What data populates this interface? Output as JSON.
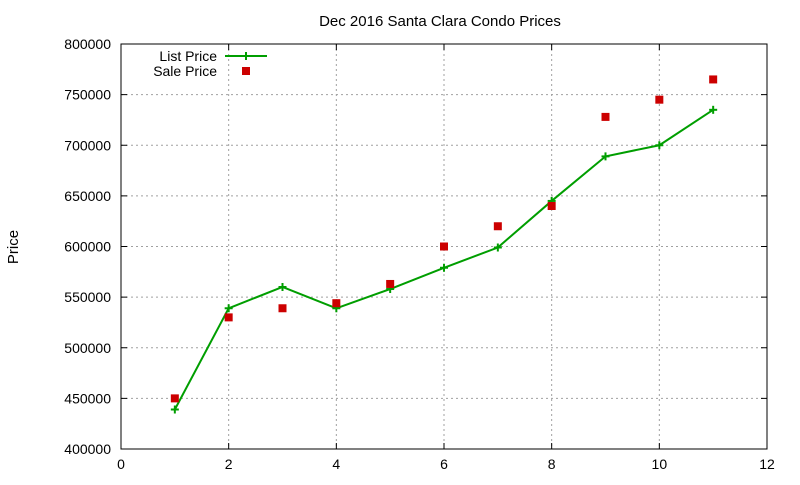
{
  "chart_data": {
    "type": "scatter",
    "title": "Dec 2016 Santa Clara Condo Prices",
    "xlabel": "",
    "ylabel": "Price",
    "xlim": [
      0,
      12
    ],
    "ylim": [
      400000,
      800000
    ],
    "xticks": [
      0,
      2,
      4,
      6,
      8,
      10,
      12
    ],
    "yticks": [
      400000,
      450000,
      500000,
      550000,
      600000,
      650000,
      700000,
      750000,
      800000
    ],
    "grid": true,
    "legend_position": "top-left",
    "series": [
      {
        "name": "List Price",
        "style": "line-with-plus-markers",
        "color": "#009e00",
        "x": [
          1,
          2,
          3,
          4,
          5,
          6,
          7,
          8,
          9,
          10,
          11
        ],
        "y": [
          439000,
          539000,
          560000,
          539000,
          558000,
          579000,
          599000,
          645000,
          689000,
          700000,
          735000
        ]
      },
      {
        "name": "Sale Price",
        "style": "square-markers",
        "color": "#cc0000",
        "x": [
          1,
          2,
          3,
          4,
          5,
          6,
          7,
          8,
          9,
          10,
          11
        ],
        "y": [
          450000,
          530000,
          539000,
          544000,
          563000,
          600000,
          620000,
          640000,
          728000,
          745000,
          765000
        ]
      }
    ]
  }
}
